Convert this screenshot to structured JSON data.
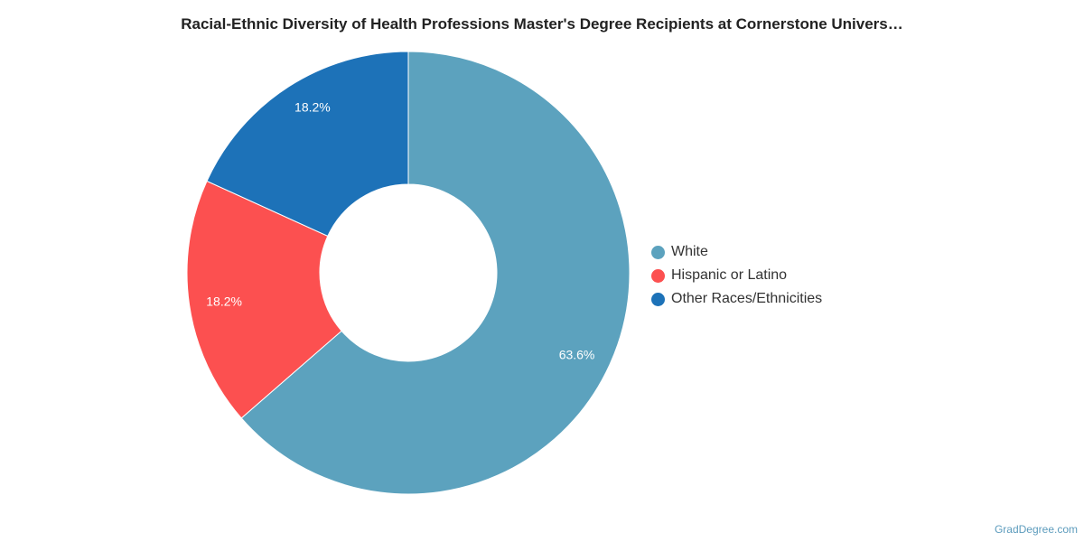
{
  "chart_data": {
    "type": "pie",
    "variant": "donut",
    "title": "Racial-Ethnic Diversity of Health Professions Master's Degree Recipients at Cornerstone Univers…",
    "slices": [
      {
        "label": "White",
        "value": 63.6,
        "display": "63.6%",
        "color": "#5ca2be"
      },
      {
        "label": "Hispanic or Latino",
        "value": 18.2,
        "display": "18.2%",
        "color": "#fc5050"
      },
      {
        "label": "Other Races/Ethnicities",
        "value": 18.2,
        "display": "18.2%",
        "color": "#1d72b8"
      }
    ],
    "legend_position": "right"
  },
  "credit": "GradDegree.com"
}
